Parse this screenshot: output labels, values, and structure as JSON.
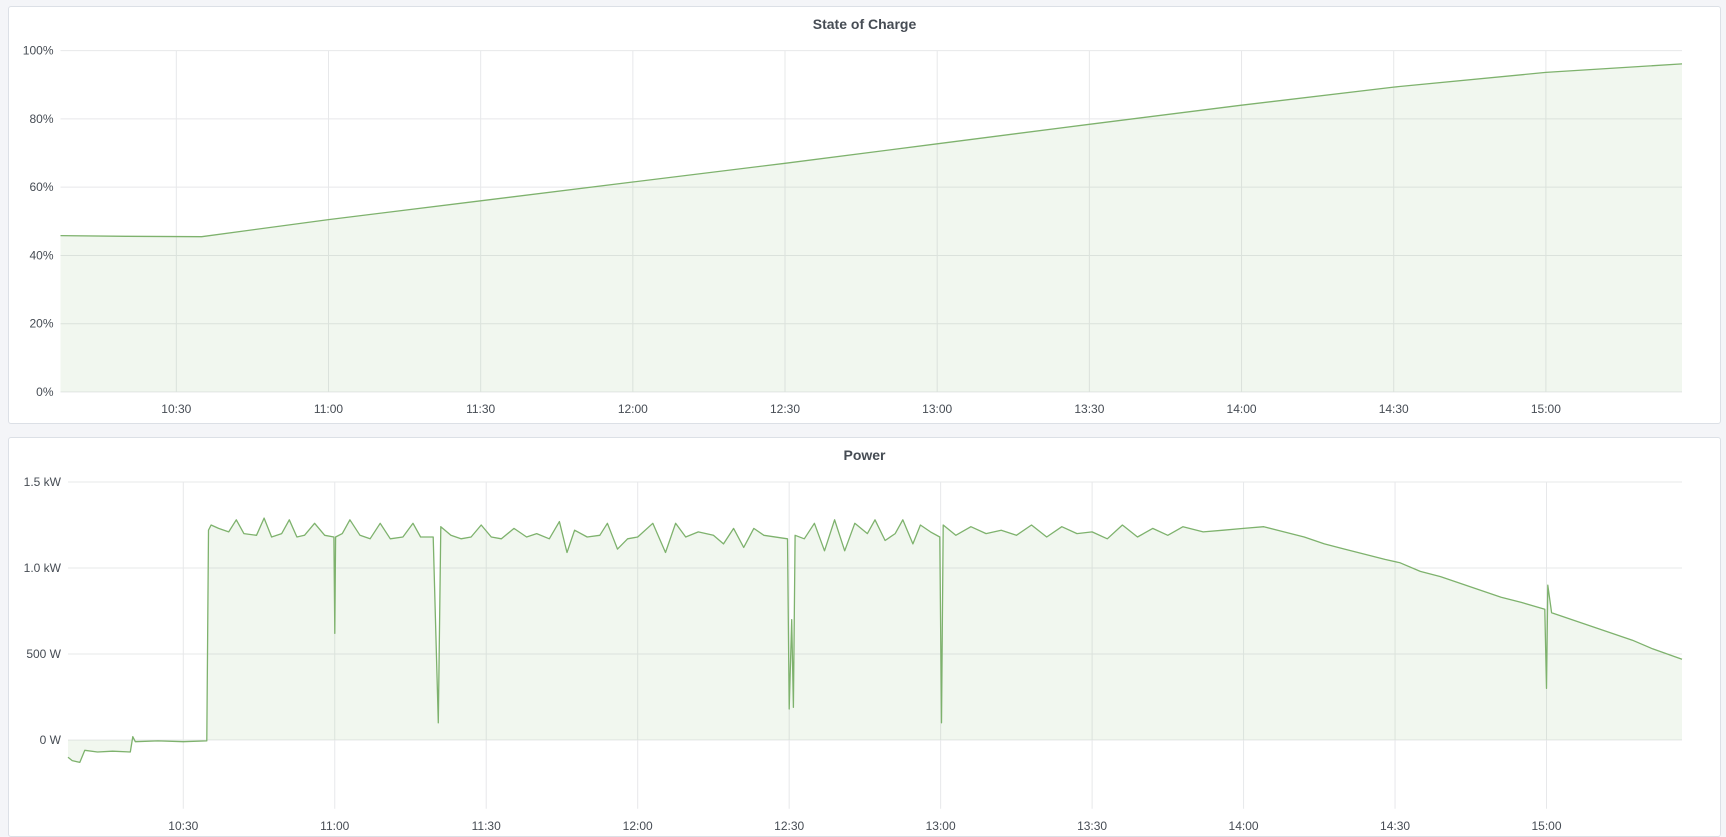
{
  "colors": {
    "series": "#7eb26d",
    "fill": "rgba(126,178,109,0.11)",
    "grid": "#e7e8ea",
    "background": "#f4f5f8"
  },
  "chart_data": [
    {
      "type": "area",
      "title": "State of Charge",
      "xlabel": "",
      "ylabel": "",
      "xlim": [
        "10:07:10",
        "15:26:50"
      ],
      "ylim": [
        0,
        100
      ],
      "grid": true,
      "legend": "none",
      "xticks": [
        "10:30",
        "11:00",
        "11:30",
        "12:00",
        "12:30",
        "13:00",
        "13:30",
        "14:00",
        "14:30",
        "15:00"
      ],
      "yticks": [
        0,
        20,
        40,
        60,
        80,
        100
      ],
      "ytick_labels": [
        "0%",
        "20%",
        "40%",
        "60%",
        "80%",
        "100%"
      ],
      "points": [
        [
          "10:07:10",
          45.8
        ],
        [
          "10:20:00",
          45.6
        ],
        [
          "10:35:00",
          45.5
        ],
        [
          "11:00:00",
          50.5
        ],
        [
          "11:30:00",
          56.0
        ],
        [
          "12:00:00",
          61.5
        ],
        [
          "12:30:00",
          67.0
        ],
        [
          "13:00:00",
          72.7
        ],
        [
          "13:30:00",
          78.4
        ],
        [
          "14:00:00",
          84.0
        ],
        [
          "14:30:00",
          89.3
        ],
        [
          "15:00:00",
          93.6
        ],
        [
          "15:26:50",
          96.1
        ]
      ]
    },
    {
      "type": "area",
      "title": "Power",
      "xlabel": "",
      "ylabel": "",
      "xlim": [
        "10:07:10",
        "15:26:50"
      ],
      "ylim": [
        -400,
        1500
      ],
      "grid": true,
      "legend": "none",
      "xticks": [
        "10:30",
        "11:00",
        "11:30",
        "12:00",
        "12:30",
        "13:00",
        "13:30",
        "14:00",
        "14:30",
        "15:00"
      ],
      "yticks": [
        0,
        500,
        1000,
        1500
      ],
      "ytick_labels": [
        "0 W",
        "500 W",
        "1.0 kW",
        "1.5 kW"
      ],
      "points": [
        [
          "10:07:10",
          -100
        ],
        [
          "10:08:00",
          -120
        ],
        [
          "10:09:30",
          -130
        ],
        [
          "10:10:30",
          -60
        ],
        [
          "10:13:00",
          -70
        ],
        [
          "10:16:00",
          -65
        ],
        [
          "10:19:30",
          -70
        ],
        [
          "10:20:00",
          20
        ],
        [
          "10:20:30",
          -10
        ],
        [
          "10:25:00",
          -5
        ],
        [
          "10:30:00",
          -10
        ],
        [
          "10:34:40",
          -5
        ],
        [
          "10:35:00",
          1220
        ],
        [
          "10:35:30",
          1250
        ],
        [
          "10:37:00",
          1230
        ],
        [
          "10:39:00",
          1210
        ],
        [
          "10:40:30",
          1280
        ],
        [
          "10:42:00",
          1200
        ],
        [
          "10:44:30",
          1190
        ],
        [
          "10:46:00",
          1290
        ],
        [
          "10:47:30",
          1180
        ],
        [
          "10:49:30",
          1200
        ],
        [
          "10:51:00",
          1280
        ],
        [
          "10:52:30",
          1180
        ],
        [
          "10:54:00",
          1190
        ],
        [
          "10:56:00",
          1260
        ],
        [
          "10:58:00",
          1190
        ],
        [
          "10:59:50",
          1180
        ],
        [
          "11:00:00",
          620
        ],
        [
          "11:00:10",
          1180
        ],
        [
          "11:01:30",
          1200
        ],
        [
          "11:03:00",
          1280
        ],
        [
          "11:05:00",
          1190
        ],
        [
          "11:07:00",
          1170
        ],
        [
          "11:09:00",
          1260
        ],
        [
          "11:11:00",
          1170
        ],
        [
          "11:13:30",
          1180
        ],
        [
          "11:15:30",
          1260
        ],
        [
          "11:17:00",
          1180
        ],
        [
          "11:19:30",
          1180
        ],
        [
          "11:20:30",
          100
        ],
        [
          "11:21:00",
          1240
        ],
        [
          "11:23:00",
          1190
        ],
        [
          "11:25:00",
          1170
        ],
        [
          "11:27:00",
          1180
        ],
        [
          "11:29:00",
          1250
        ],
        [
          "11:31:00",
          1180
        ],
        [
          "11:33:00",
          1170
        ],
        [
          "11:35:30",
          1230
        ],
        [
          "11:38:00",
          1180
        ],
        [
          "11:40:00",
          1200
        ],
        [
          "11:42:30",
          1170
        ],
        [
          "11:44:30",
          1270
        ],
        [
          "11:46:00",
          1090
        ],
        [
          "11:47:30",
          1220
        ],
        [
          "11:50:00",
          1180
        ],
        [
          "11:52:30",
          1190
        ],
        [
          "11:54:00",
          1260
        ],
        [
          "11:56:00",
          1110
        ],
        [
          "11:58:00",
          1170
        ],
        [
          "12:00:00",
          1180
        ],
        [
          "12:03:00",
          1260
        ],
        [
          "12:05:30",
          1090
        ],
        [
          "12:07:30",
          1260
        ],
        [
          "12:09:30",
          1180
        ],
        [
          "12:12:00",
          1210
        ],
        [
          "12:15:00",
          1190
        ],
        [
          "12:17:00",
          1140
        ],
        [
          "12:19:00",
          1230
        ],
        [
          "12:21:00",
          1120
        ],
        [
          "12:23:00",
          1230
        ],
        [
          "12:25:00",
          1190
        ],
        [
          "12:29:40",
          1170
        ],
        [
          "12:30:00",
          180
        ],
        [
          "12:30:30",
          700
        ],
        [
          "12:30:50",
          190
        ],
        [
          "12:31:10",
          1190
        ],
        [
          "12:33:00",
          1170
        ],
        [
          "12:35:00",
          1260
        ],
        [
          "12:37:00",
          1100
        ],
        [
          "12:39:00",
          1280
        ],
        [
          "12:41:00",
          1100
        ],
        [
          "12:43:00",
          1260
        ],
        [
          "12:45:30",
          1200
        ],
        [
          "12:47:00",
          1280
        ],
        [
          "12:49:00",
          1160
        ],
        [
          "12:51:00",
          1200
        ],
        [
          "12:52:30",
          1280
        ],
        [
          "12:54:30",
          1140
        ],
        [
          "12:56:00",
          1250
        ],
        [
          "12:58:00",
          1210
        ],
        [
          "12:59:50",
          1180
        ],
        [
          "13:00:10",
          100
        ],
        [
          "13:00:30",
          1250
        ],
        [
          "13:03:00",
          1190
        ],
        [
          "13:06:00",
          1240
        ],
        [
          "13:09:00",
          1200
        ],
        [
          "13:12:00",
          1220
        ],
        [
          "13:15:00",
          1190
        ],
        [
          "13:18:00",
          1250
        ],
        [
          "13:21:00",
          1180
        ],
        [
          "13:24:00",
          1240
        ],
        [
          "13:27:00",
          1200
        ],
        [
          "13:30:00",
          1210
        ],
        [
          "13:33:00",
          1170
        ],
        [
          "13:36:00",
          1250
        ],
        [
          "13:39:00",
          1180
        ],
        [
          "13:42:00",
          1230
        ],
        [
          "13:45:00",
          1190
        ],
        [
          "13:48:00",
          1240
        ],
        [
          "13:52:00",
          1210
        ],
        [
          "13:56:00",
          1220
        ],
        [
          "14:00:00",
          1230
        ],
        [
          "14:04:00",
          1240
        ],
        [
          "14:08:00",
          1210
        ],
        [
          "14:12:00",
          1180
        ],
        [
          "14:16:00",
          1140
        ],
        [
          "14:20:00",
          1110
        ],
        [
          "14:24:00",
          1080
        ],
        [
          "14:28:00",
          1050
        ],
        [
          "14:31:00",
          1030
        ],
        [
          "14:35:00",
          980
        ],
        [
          "14:39:00",
          950
        ],
        [
          "14:43:00",
          910
        ],
        [
          "14:47:00",
          870
        ],
        [
          "14:51:00",
          830
        ],
        [
          "14:55:00",
          800
        ],
        [
          "14:59:40",
          760
        ],
        [
          "15:00:00",
          300
        ],
        [
          "15:00:15",
          900
        ],
        [
          "15:01:00",
          740
        ],
        [
          "15:05:00",
          700
        ],
        [
          "15:09:00",
          660
        ],
        [
          "15:13:00",
          620
        ],
        [
          "15:17:00",
          580
        ],
        [
          "15:21:00",
          530
        ],
        [
          "15:26:50",
          470
        ]
      ]
    }
  ]
}
